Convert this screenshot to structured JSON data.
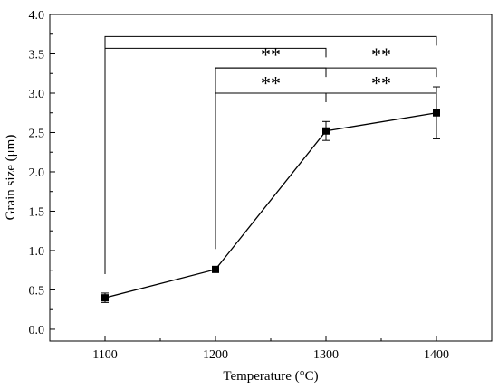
{
  "chart_data": {
    "type": "line",
    "xlabel": "Temperature (°C)",
    "ylabel": "Grain size (μm)",
    "xlim": [
      1050,
      1450
    ],
    "ylim": [
      -0.15,
      4.0
    ],
    "x_ticks": [
      1100,
      1200,
      1300,
      1400
    ],
    "x_tick_labels": [
      "1100",
      "1200",
      "1300",
      "1400"
    ],
    "y_ticks": [
      0.0,
      0.5,
      1.0,
      1.5,
      2.0,
      2.5,
      3.0,
      3.5,
      4.0
    ],
    "y_tick_labels": [
      "0.0",
      "0.5",
      "1.0",
      "1.5",
      "2.0",
      "2.5",
      "3.0",
      "3.5",
      "4.0"
    ],
    "grid": false,
    "series": [
      {
        "x": [
          1100,
          1200,
          1300,
          1400
        ],
        "values": [
          0.4,
          0.76,
          2.52,
          2.75
        ],
        "error": [
          0.06,
          0.02,
          0.12,
          0.33
        ],
        "marker": "square",
        "color": "#000000"
      }
    ],
    "significance": [
      {
        "from": 1100,
        "to": 1300,
        "y": 3.57,
        "start_y": 0.7,
        "label": ""
      },
      {
        "from": 1100,
        "to": 1400,
        "y": 3.72,
        "start_y": 3.57,
        "label": ""
      },
      {
        "from": 1200,
        "to": 1300,
        "y": 3.32,
        "start_y": 1.02,
        "label": "**"
      },
      {
        "from": 1200,
        "to": 1400,
        "y": 3.32,
        "start_y": 3.32,
        "label": "**"
      },
      {
        "from": 1200,
        "to": 1300,
        "y": 3.0,
        "start_y": 3.0,
        "label": "**"
      },
      {
        "from": 1300,
        "to": 1400,
        "y": 3.0,
        "start_y": 3.0,
        "label": "**"
      }
    ],
    "significance_labels": [
      {
        "x": 1250,
        "y": 3.4,
        "text": "**"
      },
      {
        "x": 1350,
        "y": 3.4,
        "text": "**"
      },
      {
        "x": 1250,
        "y": 3.04,
        "text": "**"
      },
      {
        "x": 1350,
        "y": 3.04,
        "text": "**"
      }
    ]
  }
}
